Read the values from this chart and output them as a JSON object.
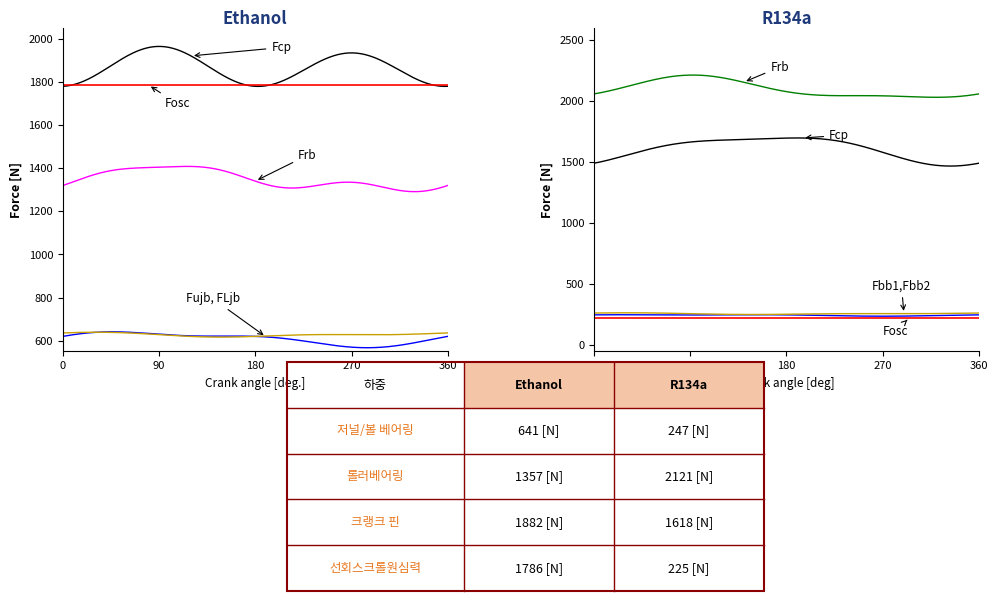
{
  "ethanol_title": "Ethanol",
  "r134a_title": "R134a",
  "title_color": "#1F3A7A",
  "ethanol_ylim": [
    550,
    2050
  ],
  "ethanol_yticks": [
    600,
    800,
    1000,
    1200,
    1400,
    1600,
    1800,
    2000
  ],
  "r134a_ylim": [
    -50,
    2600
  ],
  "r134a_yticks": [
    0,
    500,
    1000,
    1500,
    2000,
    2500
  ],
  "xlim": [
    0,
    360
  ],
  "xticks": [
    0,
    90,
    180,
    270,
    360
  ],
  "xlabel_ethanol": "Crank angle [deg.]",
  "xlabel_r134a": "crank angle [deg]",
  "ylabel": "Force [N]",
  "r134a_Fosc": 225,
  "table_rows_korean": [
    "저널/볼 베어링",
    "롤러베어링",
    "크랭크 핀",
    "선회스크롤원심력"
  ],
  "table_ethanol": [
    "641 [N]",
    "1357 [N]",
    "1882 [N]",
    "1786 [N]"
  ],
  "table_r134a": [
    "247 [N]",
    "2121 [N]",
    "1618 [N]",
    "225 [N]"
  ],
  "table_header": [
    "하중",
    "Ethanol",
    "R134a"
  ],
  "orange_color": "#E87820",
  "table_header_bg": "#F5C5A8",
  "table_border_color": "#8B0000",
  "bg_color": "#FFFFFF"
}
